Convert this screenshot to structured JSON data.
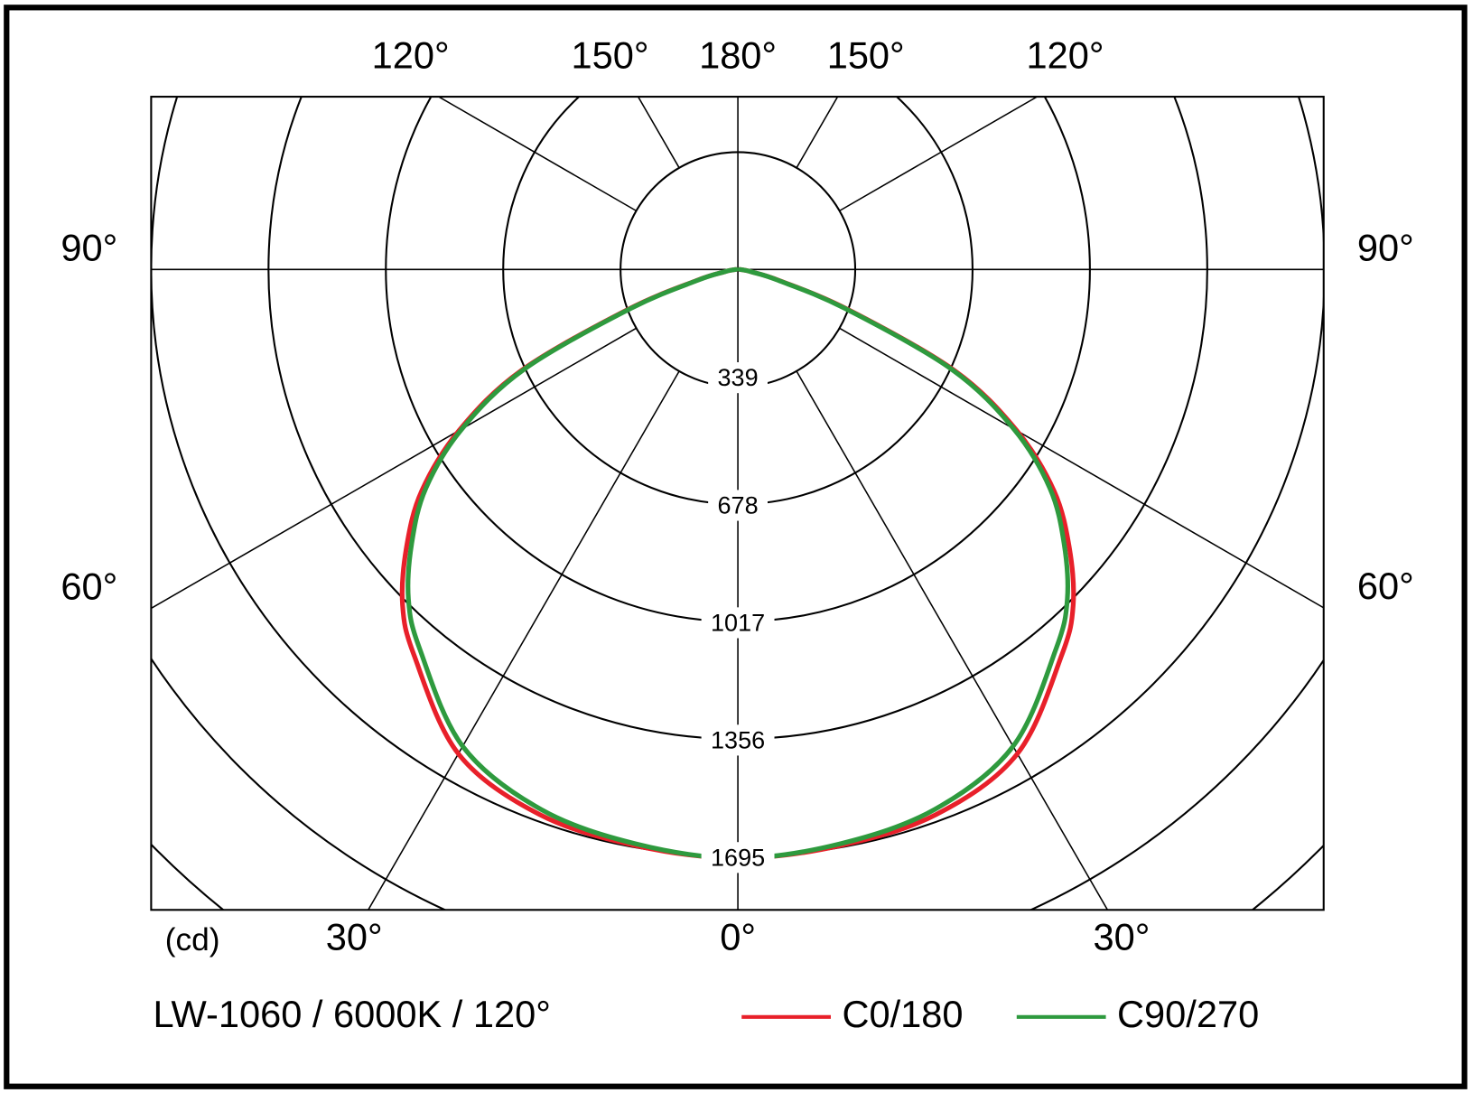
{
  "chart_data": {
    "type": "polar",
    "title": "LW-1060 / 6000K / 120°",
    "unit_label": "(cd)",
    "x": [
      -90,
      -85,
      -80,
      -75,
      -70,
      -65,
      -60,
      -55,
      -50,
      -45,
      -40,
      -30,
      -20,
      -10,
      0,
      10,
      20,
      30,
      40,
      45,
      50,
      55,
      60,
      65,
      70,
      75,
      80,
      85,
      90
    ],
    "series": [
      {
        "name": "C0/180",
        "color": "#e8202a",
        "values": [
          5,
          15,
          40,
          125,
          340,
          690,
          930,
          1115,
          1250,
          1370,
          1455,
          1615,
          1675,
          1690,
          1700,
          1690,
          1675,
          1615,
          1455,
          1370,
          1250,
          1115,
          930,
          690,
          340,
          125,
          40,
          15,
          5
        ]
      },
      {
        "name": "C90/270",
        "color": "#2e9a3e",
        "values": [
          5,
          15,
          40,
          120,
          330,
          680,
          920,
          1100,
          1230,
          1346,
          1430,
          1590,
          1660,
          1685,
          1700,
          1685,
          1660,
          1590,
          1430,
          1346,
          1230,
          1100,
          920,
          680,
          330,
          120,
          40,
          15,
          5
        ]
      }
    ],
    "rlim": [
      0,
      2373
    ],
    "rticks": [
      339,
      678,
      1017,
      1356,
      1695,
      {
        "value": 2034,
        "label": null
      },
      {
        "value": 2373,
        "label": null
      }
    ],
    "angle_ticks": [
      {
        "value": 0,
        "label": "0°"
      },
      {
        "value": 30,
        "label": "30°"
      },
      {
        "value": 60,
        "label": "60°"
      },
      {
        "value": 90,
        "label": "90°"
      },
      {
        "value": 120,
        "label": "120°"
      },
      {
        "value": 150,
        "label": "150°"
      },
      {
        "value": 180,
        "label": "180°"
      }
    ]
  }
}
